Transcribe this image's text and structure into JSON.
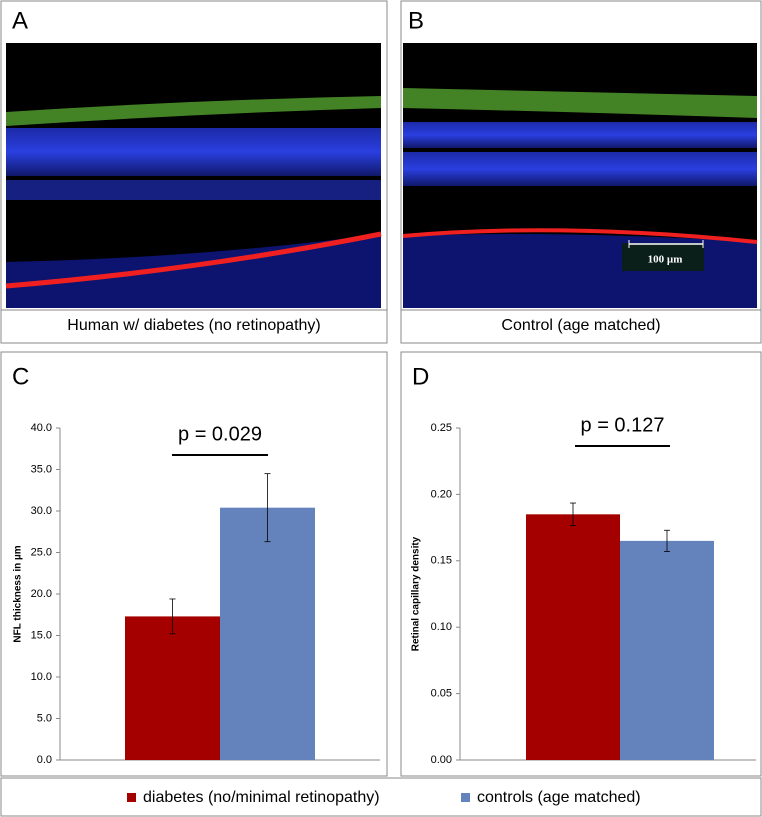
{
  "panels": [
    {
      "label": "A",
      "caption": "Human w/ diabetes (no retinopathy)"
    },
    {
      "label": "B",
      "caption": "Control (age matched)",
      "scale_bar": "100 µm"
    }
  ],
  "chart_data": [
    {
      "type": "bar",
      "panel_label": "C",
      "y_label": "NFL thickness in µm",
      "annotation": "p = 0.029",
      "ylim": [
        0,
        40
      ],
      "yticks": [
        {
          "value": 0,
          "label": "0.0"
        },
        {
          "value": 5,
          "label": "5.0"
        },
        {
          "value": 10,
          "label": "10.0"
        },
        {
          "value": 15,
          "label": "15.0"
        },
        {
          "value": 20,
          "label": "20.0"
        },
        {
          "value": 25,
          "label": "25.0"
        },
        {
          "value": 30,
          "label": "30.0"
        },
        {
          "value": 35,
          "label": "35.0"
        },
        {
          "value": 40,
          "label": "40.0"
        }
      ],
      "series": [
        {
          "name": "diabetes (no/minimal retinopathy)",
          "color": "#a50000",
          "values": [
            17.3
          ],
          "errors": [
            2.1
          ]
        },
        {
          "name": "controls (age matched)",
          "color": "#6482bc",
          "values": [
            30.4
          ],
          "errors": [
            4.1
          ]
        }
      ]
    },
    {
      "type": "bar",
      "panel_label": "D",
      "y_label": "Retinal capillary density",
      "annotation": "p = 0.127",
      "ylim": [
        0,
        0.25
      ],
      "yticks": [
        {
          "value": 0,
          "label": "0.00"
        },
        0.05,
        {
          "value": 0.1,
          "label": "0.10"
        },
        0.15,
        {
          "value": 0.2,
          "label": "0.20"
        },
        0.25
      ],
      "series": [
        {
          "color": "#a50000",
          "values": [
            0.185
          ],
          "errors": [
            0.0085
          ]
        },
        {
          "color": "#6482bc",
          "values": [
            0.165
          ],
          "errors": [
            0.008
          ]
        }
      ]
    }
  ]
}
